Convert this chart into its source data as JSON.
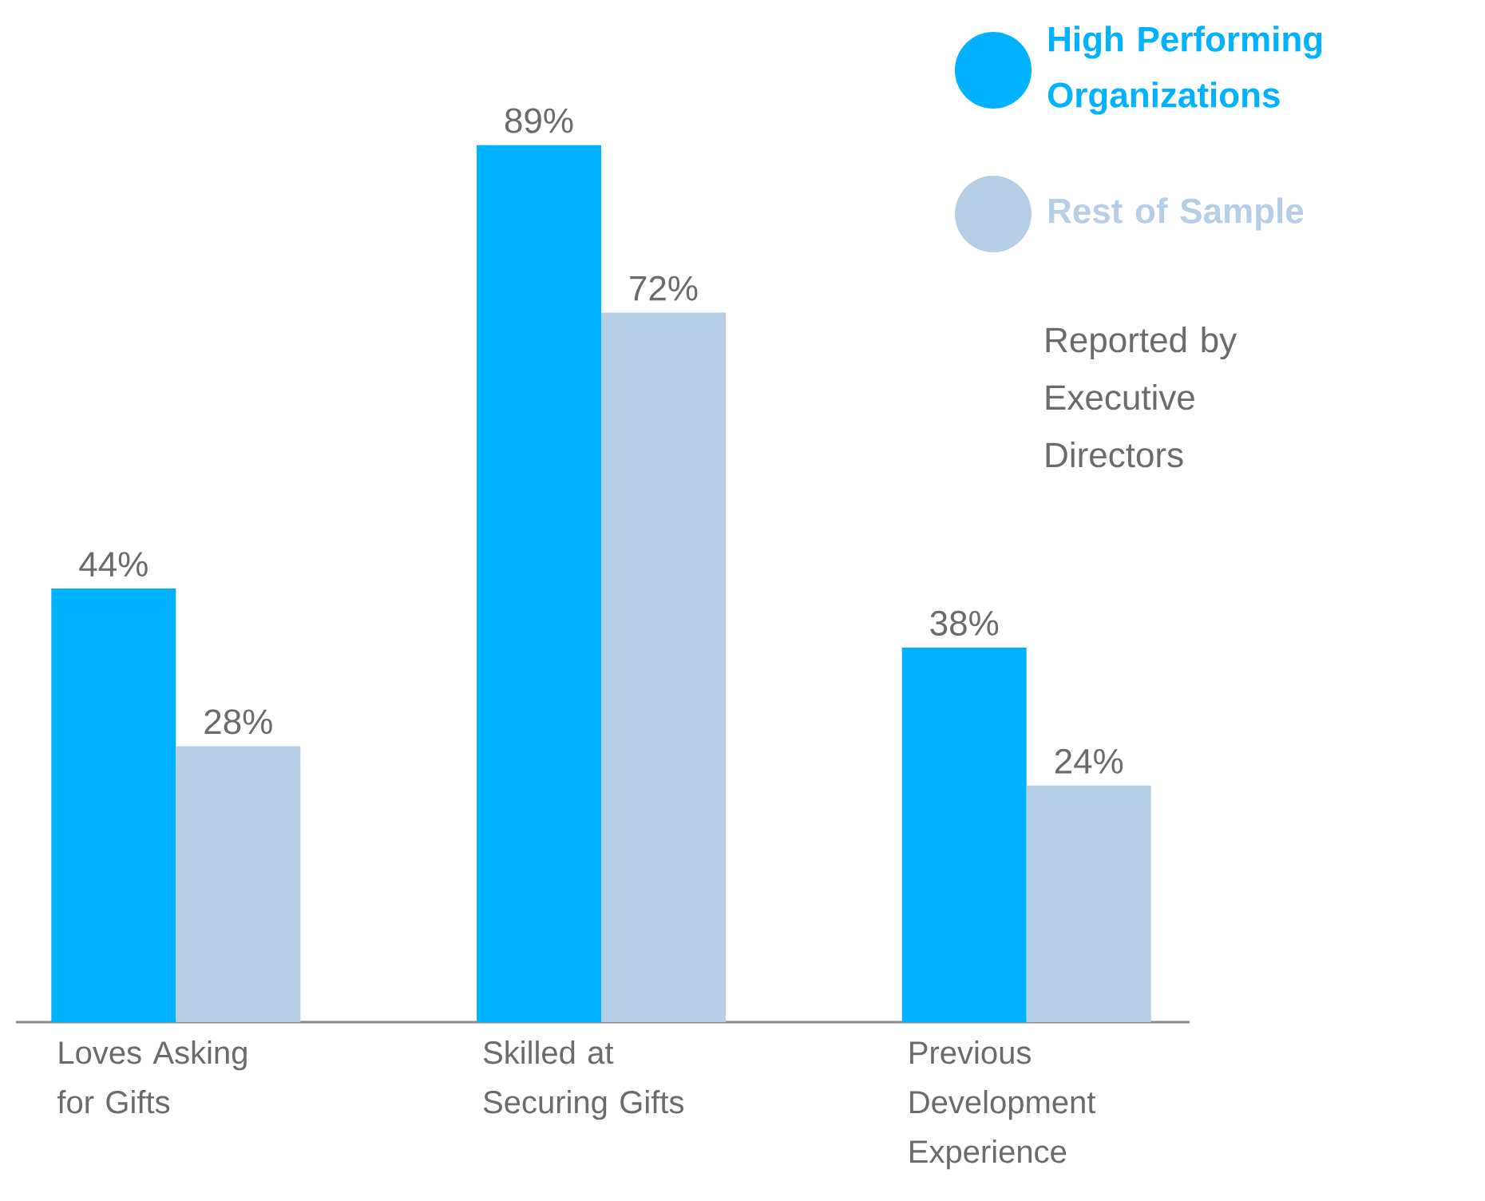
{
  "chart_data": {
    "type": "bar",
    "categories": [
      "Loves Asking for Gifts",
      "Skilled at Securing Gifts",
      "Previous Development Experience"
    ],
    "series": [
      {
        "name": "High Performing Organizations",
        "color": "#00b2ff",
        "values": [
          44,
          89,
          38
        ],
        "value_labels": [
          "44%",
          "89%",
          "38%"
        ]
      },
      {
        "name": "Rest of Sample",
        "color": "#b6cfe6",
        "values": [
          28,
          72,
          24
        ],
        "value_labels": [
          "28%",
          "72%",
          "24%"
        ]
      }
    ],
    "tick_labels": "x",
    "legend": "top right",
    "annotations": [
      "Reported by Executive Directors"
    ]
  }
}
